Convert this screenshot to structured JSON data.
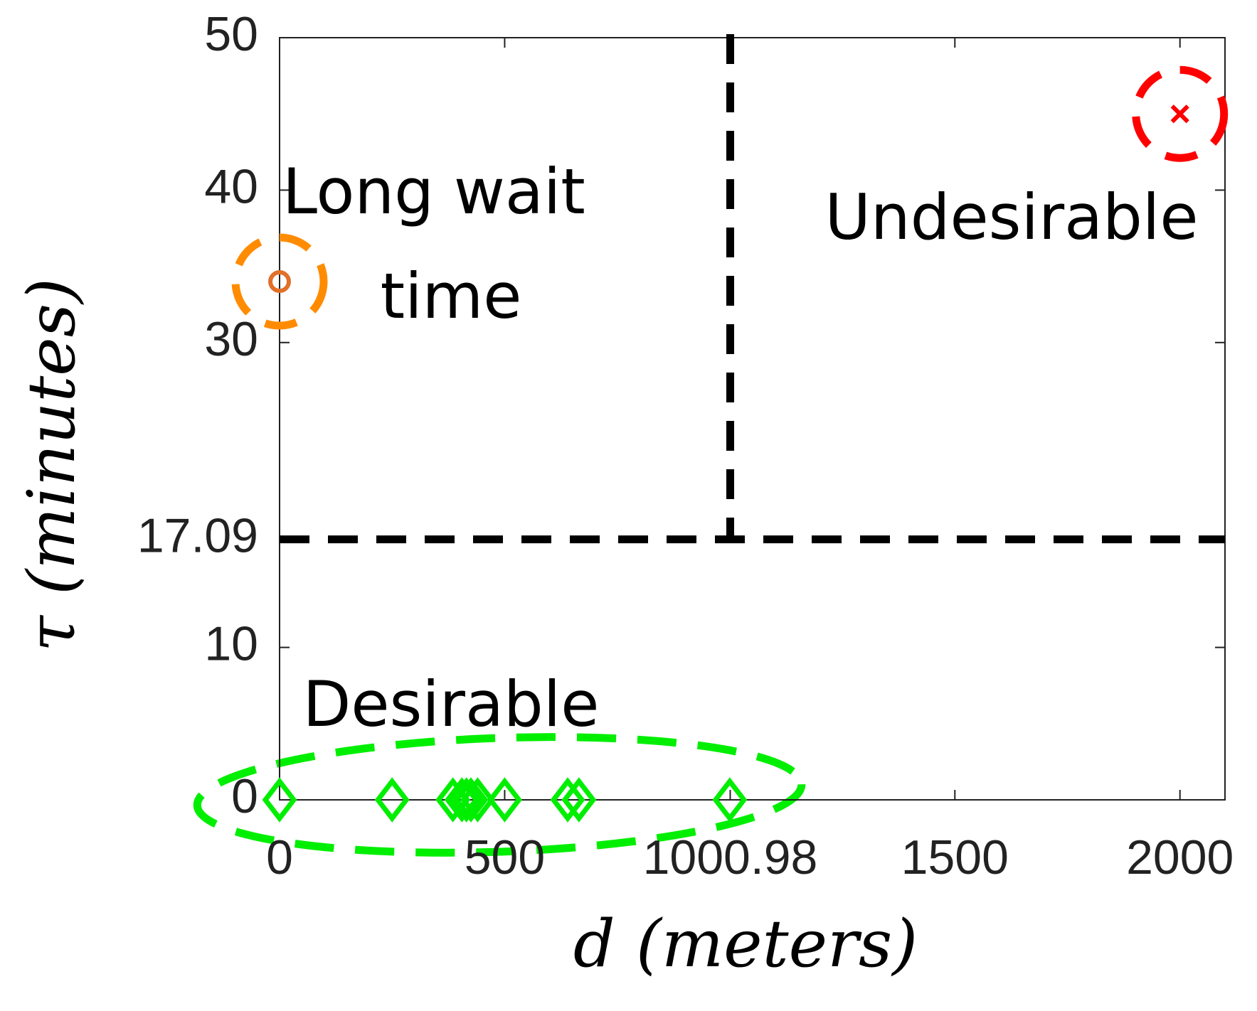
{
  "chart_data": {
    "type": "scatter",
    "xlabel": "d (meters)",
    "ylabel": "τ (minutes)",
    "xlim": [
      0,
      2100
    ],
    "ylim": [
      0,
      50
    ],
    "xticks": [
      0,
      500,
      1000.98,
      1500,
      2000
    ],
    "yticks": [
      0,
      10,
      17.09,
      30,
      40,
      50
    ],
    "thresholds": {
      "x": 1000.98,
      "y": 17.09
    },
    "series": [
      {
        "marker": "diamond",
        "color": "#00ee00",
        "x": [
          0,
          250,
          385,
          405,
          415,
          425,
          440,
          500,
          640,
          665,
          1000
        ],
        "values": [
          0,
          0,
          0,
          0,
          0,
          0,
          0,
          0,
          0,
          0,
          0
        ]
      },
      {
        "marker": "circle",
        "color": "#e0702a",
        "ring": "#ff8c00",
        "x": [
          0
        ],
        "values": [
          34
        ]
      },
      {
        "marker": "x",
        "color": "#ff0000",
        "ring": "#ff0000",
        "x": [
          2000
        ],
        "values": [
          45
        ]
      }
    ],
    "annotations": [
      "Long wait",
      "time",
      "Undesirable",
      "Desirable"
    ]
  }
}
